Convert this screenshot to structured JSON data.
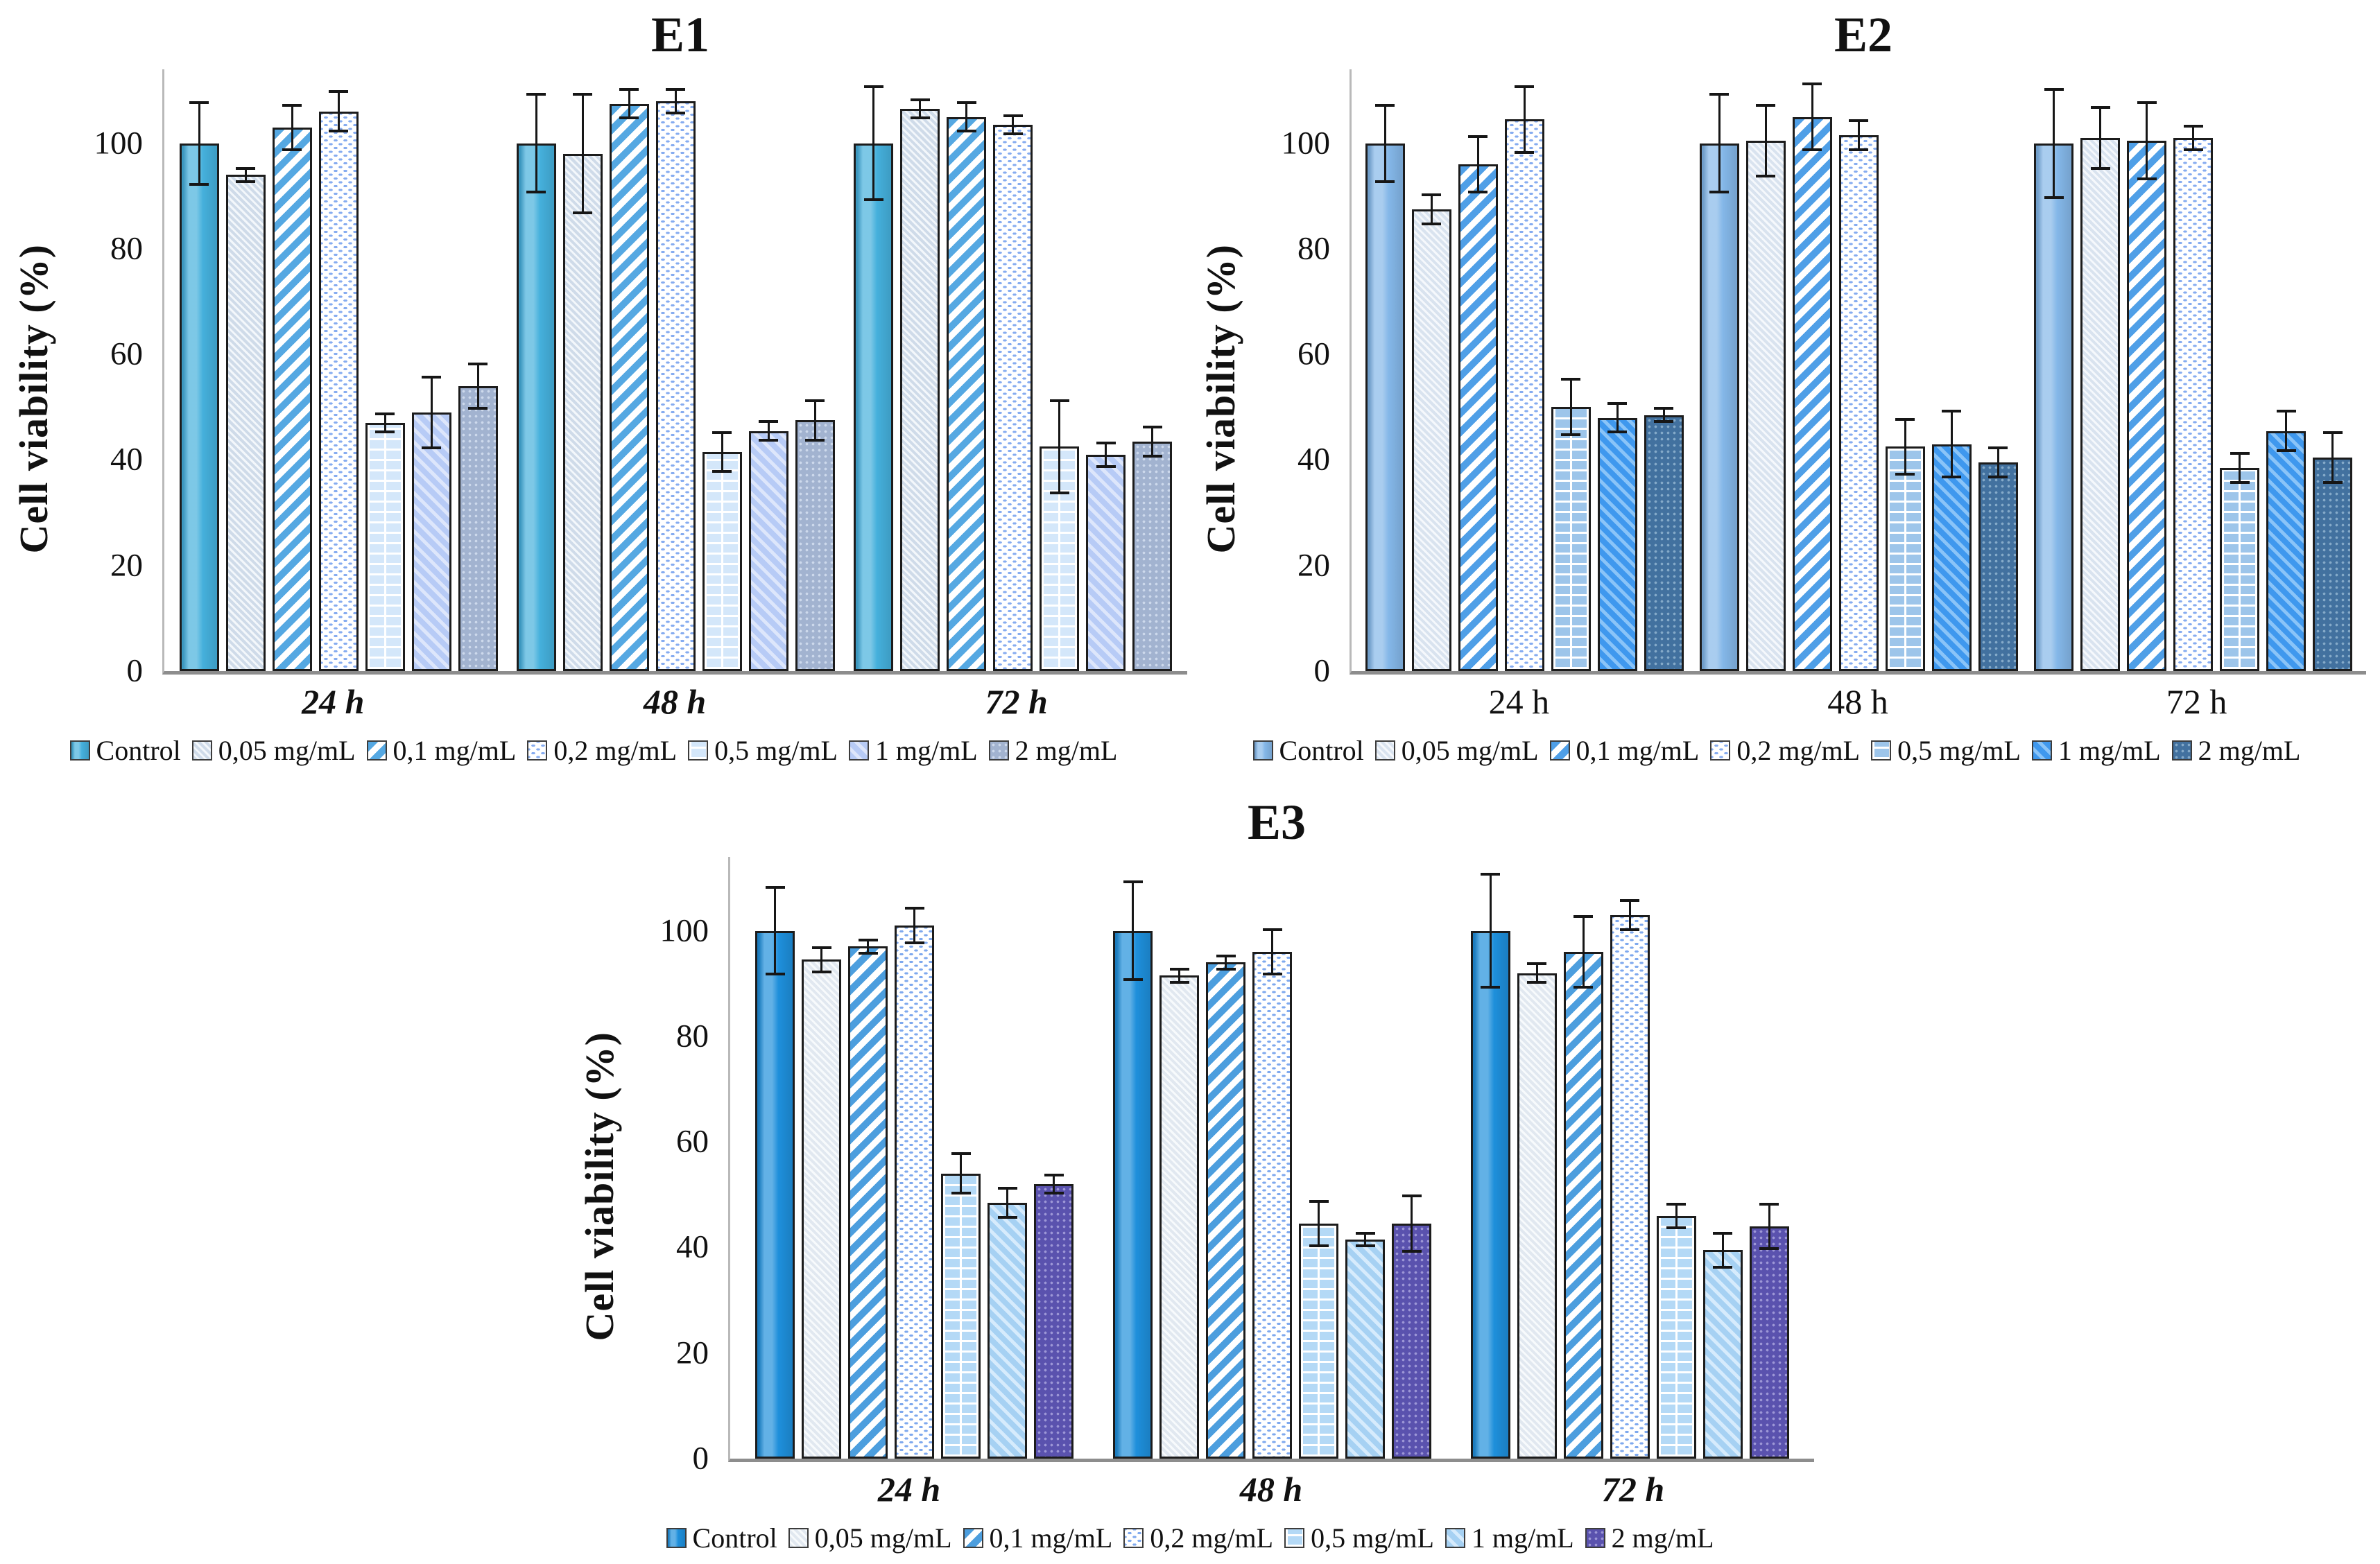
{
  "chart_data": [
    {
      "type": "bar",
      "title": "E1",
      "ylabel": "Cell viability (%)",
      "xlabel": "",
      "categories": [
        "24 h",
        "48 h",
        "72 h"
      ],
      "categories_italic": true,
      "yticks": [
        0,
        20,
        40,
        60,
        80,
        100
      ],
      "ylim": [
        0,
        114
      ],
      "grid": false,
      "legend_position": "bottom",
      "series": [
        {
          "name": "Control",
          "pattern": "solid",
          "color": "#45b0dc",
          "color2": "",
          "values": [
            100,
            100,
            100
          ],
          "errors": [
            8,
            9.5,
            11
          ]
        },
        {
          "name": "0,05 mg/mL",
          "pattern": "hatch",
          "color": "#cfdbe9",
          "color2": "#f3f7fb",
          "values": [
            94,
            98,
            106.5
          ],
          "errors": [
            1.5,
            11.5,
            2
          ]
        },
        {
          "name": "0,1 mg/mL",
          "pattern": "stripes",
          "color": "#55a8e2",
          "color2": "#ffffff",
          "values": [
            103,
            107.5,
            105
          ],
          "errors": [
            4.5,
            3,
            3
          ]
        },
        {
          "name": "0,2 mg/mL",
          "pattern": "dots",
          "color": "#86acf0",
          "color2": "",
          "values": [
            106,
            108,
            103.5
          ],
          "errors": [
            4,
            2.5,
            2
          ]
        },
        {
          "name": "0,5 mg/mL",
          "pattern": "bricks",
          "color": "#d4e7fa",
          "color2": "#ffffff",
          "values": [
            47,
            41.5,
            42.5
          ],
          "errors": [
            2,
            4,
            9
          ]
        },
        {
          "name": "1 mg/mL",
          "pattern": "backhatch",
          "color": "#b7cbf6",
          "color2": "#dde6fb",
          "values": [
            49,
            45.5,
            41
          ],
          "errors": [
            7,
            2,
            2.5
          ]
        },
        {
          "name": "2 mg/mL",
          "pattern": "dotgrid",
          "color": "#a2b3d0",
          "color2": "#cdd9ec",
          "values": [
            54,
            47.5,
            43.5
          ],
          "errors": [
            4.5,
            4,
            3
          ]
        }
      ]
    },
    {
      "type": "bar",
      "title": "E2",
      "ylabel": "Cell viability (%)",
      "xlabel": "",
      "categories": [
        "24 h",
        "48 h",
        "72 h"
      ],
      "categories_italic": false,
      "yticks": [
        0,
        20,
        40,
        60,
        80,
        100
      ],
      "ylim": [
        0,
        114
      ],
      "grid": false,
      "legend_position": "bottom",
      "series": [
        {
          "name": "Control",
          "pattern": "solid",
          "color": "#84b7e8",
          "color2": "",
          "values": [
            100,
            100,
            100
          ],
          "errors": [
            7.5,
            9.5,
            10.5
          ]
        },
        {
          "name": "0,05 mg/mL",
          "pattern": "hatch",
          "color": "#d9e3ef",
          "color2": "#f5f8fc",
          "values": [
            87.5,
            100.5,
            101
          ],
          "errors": [
            3,
            7,
            6
          ]
        },
        {
          "name": "0,1 mg/mL",
          "pattern": "stripes",
          "color": "#4f9fe7",
          "color2": "#ffffff",
          "values": [
            96,
            105,
            100.5
          ],
          "errors": [
            5.5,
            6.5,
            7.5
          ]
        },
        {
          "name": "0,2 mg/mL",
          "pattern": "dots",
          "color": "#86acf0",
          "color2": "",
          "values": [
            104.5,
            101.5,
            101
          ],
          "errors": [
            6.5,
            3,
            2.5
          ]
        },
        {
          "name": "0,5 mg/mL",
          "pattern": "bricks",
          "color": "#9dc5ea",
          "color2": "#ffffff",
          "values": [
            50,
            42.5,
            38.5
          ],
          "errors": [
            5.5,
            5.5,
            3
          ]
        },
        {
          "name": "1 mg/mL",
          "pattern": "backhatch",
          "color": "#3f98ee",
          "color2": "#8ac4f8",
          "values": [
            48,
            43,
            45.5
          ],
          "errors": [
            3,
            6.5,
            4
          ]
        },
        {
          "name": "2 mg/mL",
          "pattern": "dotgrid",
          "color": "#42719f",
          "color2": "#85aac9",
          "values": [
            48.5,
            39.5,
            40.5
          ],
          "errors": [
            1.5,
            3,
            5
          ]
        }
      ]
    },
    {
      "type": "bar",
      "title": "E3",
      "ylabel": "Cell viability (%)",
      "xlabel": "",
      "categories": [
        "24 h",
        "48 h",
        "72 h"
      ],
      "categories_italic": true,
      "yticks": [
        0,
        20,
        40,
        60,
        80,
        100
      ],
      "ylim": [
        0,
        114
      ],
      "grid": false,
      "legend_position": "bottom",
      "series": [
        {
          "name": "Control",
          "pattern": "solid",
          "color": "#1e8fdb",
          "color2": "",
          "values": [
            100,
            100,
            100
          ],
          "errors": [
            8.5,
            9.5,
            11
          ]
        },
        {
          "name": "0,05 mg/mL",
          "pattern": "hatch",
          "color": "#e1e8f0",
          "color2": "#f7fafc",
          "values": [
            94.5,
            91.5,
            92
          ],
          "errors": [
            2.5,
            1.5,
            2
          ]
        },
        {
          "name": "0,1 mg/mL",
          "pattern": "stripes",
          "color": "#4c9ede",
          "color2": "#ffffff",
          "values": [
            97,
            94,
            96
          ],
          "errors": [
            1.5,
            1.5,
            7
          ]
        },
        {
          "name": "0,2 mg/mL",
          "pattern": "dots",
          "color": "#7fa9ee",
          "color2": "",
          "values": [
            101,
            96,
            103
          ],
          "errors": [
            3.5,
            4.5,
            3
          ]
        },
        {
          "name": "0,5 mg/mL",
          "pattern": "bricks",
          "color": "#b4d9f6",
          "color2": "#ffffff",
          "values": [
            54,
            44.5,
            46
          ],
          "errors": [
            4,
            4.5,
            2.5
          ]
        },
        {
          "name": "1 mg/mL",
          "pattern": "backhatch",
          "color": "#a6d1f3",
          "color2": "#d6ebfc",
          "values": [
            48.5,
            41.5,
            39.5
          ],
          "errors": [
            3,
            1.5,
            3.5
          ]
        },
        {
          "name": "2 mg/mL",
          "pattern": "dotgrid",
          "color": "#5a52ae",
          "color2": "#9d97d6",
          "values": [
            52,
            44.5,
            44
          ],
          "errors": [
            2,
            5.5,
            4.5
          ]
        }
      ]
    }
  ]
}
